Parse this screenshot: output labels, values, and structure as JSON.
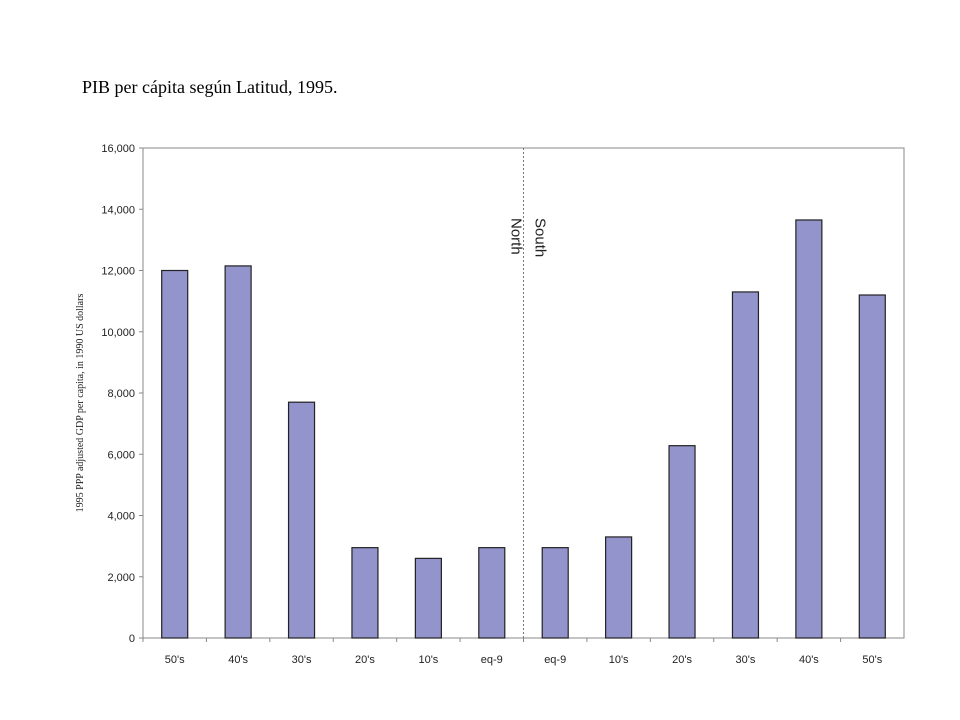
{
  "slide": {
    "title": "PIB per cápita según Latitud, 1995."
  },
  "chart_data": {
    "type": "bar",
    "title": "",
    "xlabel": "",
    "ylabel": "1995 PPP adjusted GDP per capita, in 1990 US dollars",
    "categories": [
      "50's",
      "40's",
      "30's",
      "20's",
      "10's",
      "eq-9",
      "eq-9",
      "10's",
      "20's",
      "30's",
      "40's",
      "50's"
    ],
    "values": [
      12000,
      12150,
      7700,
      2950,
      2600,
      2950,
      2950,
      3300,
      6280,
      11300,
      13650,
      11200
    ],
    "ylim": [
      0,
      16000
    ],
    "yticks": [
      0,
      2000,
      4000,
      6000,
      8000,
      10000,
      12000,
      14000,
      16000
    ],
    "ytick_labels": [
      "0",
      "2,000",
      "4,000",
      "6,000",
      "8,000",
      "10,000",
      "12,000",
      "14,000",
      "16,000"
    ],
    "grid": false,
    "divider_after_index": 5,
    "regions": [
      "North",
      "South"
    ],
    "colors": {
      "bar_fill": "#9494cc",
      "bar_stroke": "#222222",
      "frame": "#888888",
      "divider": "#777777"
    }
  }
}
